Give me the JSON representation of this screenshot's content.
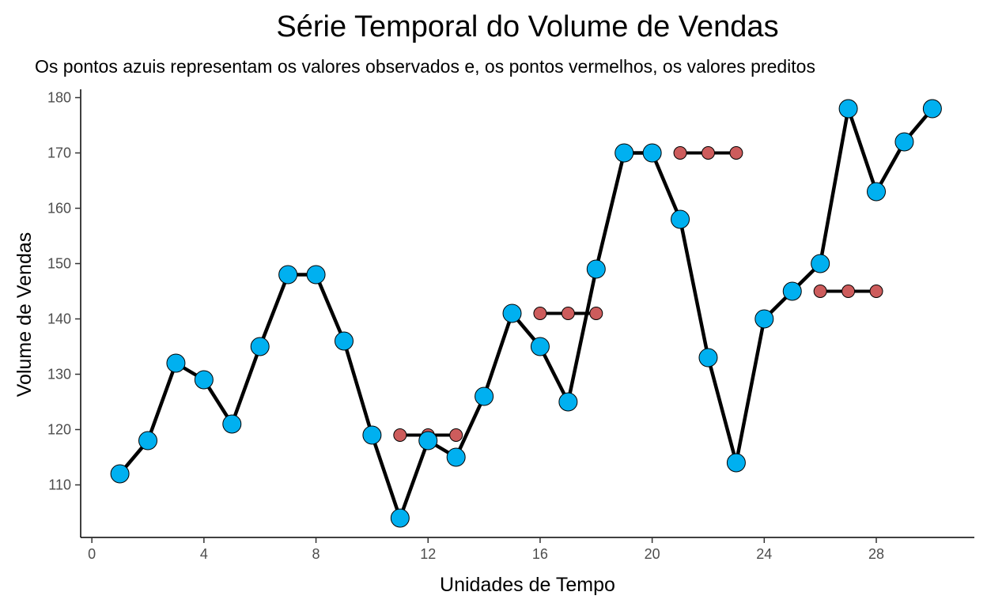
{
  "chart_data": {
    "type": "line",
    "title": "Série Temporal do Volume de Vendas",
    "subtitle": "Os pontos azuis representam os valores observados e, os pontos vermelhos, os valores preditos",
    "xlabel": "Unidades de Tempo",
    "ylabel": "Volume de Vendas",
    "xlim": [
      -0.4,
      31.5
    ],
    "ylim": [
      100.5,
      181.5
    ],
    "x_ticks": [
      0,
      4,
      8,
      12,
      16,
      20,
      24,
      28
    ],
    "y_ticks": [
      110,
      120,
      130,
      140,
      150,
      160,
      170,
      180
    ],
    "grid": false,
    "legend": "none",
    "series": [
      {
        "name": "observados",
        "color": "#00b0f0",
        "x": [
          1,
          2,
          3,
          4,
          5,
          6,
          7,
          8,
          9,
          10,
          11,
          12,
          13,
          14,
          15,
          16,
          17,
          18,
          19,
          20,
          21,
          22,
          23,
          24,
          25,
          26,
          27,
          28,
          29,
          30
        ],
        "y": [
          112,
          118,
          132,
          129,
          121,
          135,
          148,
          148,
          136,
          119,
          104,
          118,
          115,
          126,
          141,
          135,
          125,
          149,
          170,
          170,
          158,
          133,
          114,
          140,
          145,
          150,
          178,
          163,
          172,
          178
        ]
      },
      {
        "name": "preditos",
        "color": "#cd5c5c",
        "segments": [
          {
            "x": [
              11,
              12,
              13
            ],
            "y": [
              119,
              119,
              119
            ]
          },
          {
            "x": [
              16,
              17,
              18
            ],
            "y": [
              141,
              141,
              141
            ]
          },
          {
            "x": [
              21,
              22,
              23
            ],
            "y": [
              170,
              170,
              170
            ]
          },
          {
            "x": [
              26,
              27,
              28
            ],
            "y": [
              145,
              145,
              145
            ]
          }
        ]
      }
    ]
  }
}
